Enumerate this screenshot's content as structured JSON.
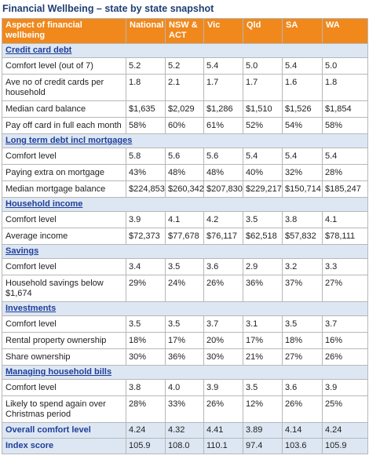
{
  "title": "Financial Wellbeing – state by state snapshot",
  "table": {
    "header": [
      "Aspect of financial wellbeing",
      "National",
      "NSW & ACT",
      "Vic",
      "Qld",
      "SA",
      "WA"
    ],
    "sections": [
      {
        "title": "Credit card debt",
        "rows": [
          [
            "Comfort level (out of 7)",
            "5.2",
            "5.2",
            "5.4",
            "5.0",
            "5.4",
            "5.0"
          ],
          [
            "Ave no of credit cards per household",
            "1.8",
            "2.1",
            "1.7",
            "1.7",
            "1.6",
            "1.8"
          ],
          [
            "Median card balance",
            "$1,635",
            "$2,029",
            "$1,286",
            "$1,510",
            "$1,526",
            "$1,854"
          ],
          [
            "Pay off card in full each month",
            "58%",
            "60%",
            "61%",
            "52%",
            "54%",
            "58%"
          ]
        ]
      },
      {
        "title": "Long term debt incl mortgages",
        "rows": [
          [
            "Comfort level",
            "5.8",
            "5.6",
            "5.6",
            "5.4",
            "5.4",
            "5.4"
          ],
          [
            "Paying extra on mortgage",
            "43%",
            "48%",
            "48%",
            "40%",
            "32%",
            "28%"
          ],
          [
            "Median mortgage balance",
            "$224,853",
            "$260,342",
            "$207,830",
            "$229,217",
            "$150,714",
            "$185,247"
          ]
        ]
      },
      {
        "title": "Household income",
        "rows": [
          [
            "Comfort level",
            "3.9",
            "4.1",
            "4.2",
            "3.5",
            "3.8",
            "4.1"
          ],
          [
            "Average income",
            "$72,373",
            "$77,678",
            "$76,117",
            "$62,518",
            "$57,832",
            "$78,111"
          ]
        ]
      },
      {
        "title": "Savings",
        "rows": [
          [
            "Comfort level",
            "3.4",
            "3.5",
            "3.6",
            "2.9",
            "3.2",
            "3.3"
          ],
          [
            "Household savings below $1,674",
            "29%",
            "24%",
            "26%",
            "36%",
            "37%",
            "27%"
          ]
        ]
      },
      {
        "title": "Investments",
        "rows": [
          [
            "Comfort level",
            "3.5",
            "3.5",
            "3.7",
            "3.1",
            "3.5",
            "3.7"
          ],
          [
            "Rental property ownership",
            "18%",
            "17%",
            "20%",
            "17%",
            "18%",
            "16%"
          ],
          [
            "Share ownership",
            "30%",
            "36%",
            "30%",
            "21%",
            "27%",
            "26%"
          ]
        ]
      },
      {
        "title": "Managing household bills",
        "rows": [
          [
            "Comfort level",
            "3.8",
            "4.0",
            "3.9",
            "3.5",
            "3.6",
            "3.9"
          ],
          [
            "Likely to spend again over Christmas period",
            "28%",
            "33%",
            "26%",
            "12%",
            "26%",
            "25%"
          ]
        ]
      }
    ],
    "summary": [
      [
        "Overall comfort level",
        "4.24",
        "4.32",
        "4.41",
        "3.89",
        "4.14",
        "4.24"
      ],
      [
        "Index score",
        "105.9",
        "108.0",
        "110.1",
        "97.4",
        "103.6",
        "105.9"
      ]
    ]
  }
}
